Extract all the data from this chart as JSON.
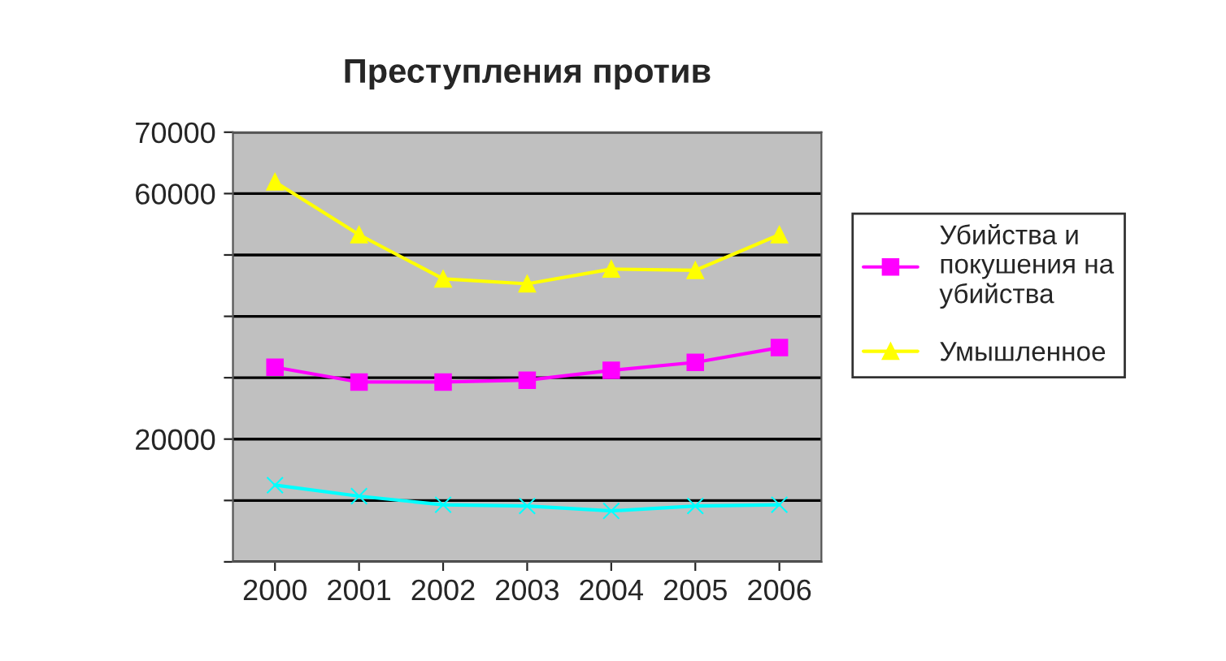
{
  "chart_data": {
    "type": "line",
    "title": "Преступления против",
    "categories": [
      "2000",
      "2001",
      "2002",
      "2003",
      "2004",
      "2005",
      "2006"
    ],
    "series": [
      {
        "name": "Убийства и покушения на убийства",
        "color": "#ff00ff",
        "marker": "square",
        "values": [
          31700,
          29300,
          29300,
          29600,
          31200,
          32500,
          34900
        ]
      },
      {
        "name": "Умышленное",
        "color": "#ffff00",
        "marker": "triangle",
        "values": [
          61900,
          53300,
          46100,
          45300,
          47700,
          47500,
          53300
        ]
      },
      {
        "color": "#00ffff",
        "marker": "cross",
        "values": [
          12500,
          10700,
          9300,
          9100,
          8300,
          9100,
          9300
        ]
      }
    ],
    "ylim": [
      0,
      70000
    ],
    "yticks": [
      {
        "value": 0,
        "label": null
      },
      {
        "value": 10000,
        "label": null
      },
      {
        "value": 20000,
        "label": "20000"
      },
      {
        "value": 30000,
        "label": null
      },
      {
        "value": 40000,
        "label": null
      },
      {
        "value": 50000,
        "label": null
      },
      {
        "value": 60000,
        "label": "60000"
      },
      {
        "value": 70000,
        "label": "70000"
      }
    ],
    "grid": "y",
    "legend": "right"
  }
}
